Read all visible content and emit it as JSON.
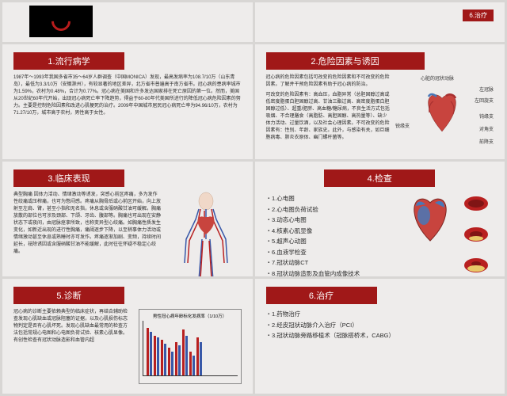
{
  "slides": {
    "s1_1": {
      "title": "1.流行病学",
      "text": "1987年～1993年我国多省市35～64岁人群调查（中国MONICA）发现，最高发病率为108.7/10万（山东青岛），最低为3.3/10万（安徽滁州），有较显著的地区差异，北方省市普遍高于南方省市。冠心病的患病率城市为1.59%，农村为0.48%，合计为0.77%。冠心病在美国和许多发达国家排在死亡原因的第一位。然而，美国从20世纪60年代开始，出现冠心病死亡率下降趋势，得益于60-80年代美国所进行的降低冠心病危险因素的努力。主要是控制危险因素和改进心肌梗死的治疗。2009年中国城市居民冠心病死亡率为94.96/10万，农村为71.27/10万，城市高于农村，男性高于女性。"
    },
    "s1_2": {
      "title": "2.危险因素与诱因",
      "text": "冠心病的危险因素包括可改变的危险因素和不可改变的危险因素。了解并干预危险因素有助于冠心病的防治。",
      "text2": "可改变的危险因素有：高血压，血脂异常（总胆固醇过高或低密度脂蛋白胆固醇过高、甘油三酯过高、高密度脂蛋白胆固醇过低）、超重/肥胖、高血糖/糖尿病，不良生活方式包括吸烟、不合理膳食（高脂肪、高胆固醇、高热量等）、缺少体力活动、过量饮酒，以及社会心理因素。不可改变的危险因素有：性别、年龄、家族史。此外，与感染有关，如巨细胞病毒、肺炎衣原体、幽门螺杆菌等。",
      "labels": {
        "top": "心脏的冠状动脉",
        "l1": "左冠脉",
        "l2": "左回旋支",
        "l3": "钝缘支",
        "l4": "对角支",
        "l5": "前降支",
        "r1": "锐缘支"
      }
    },
    "s2_1": {
      "title": "3.临床表现",
      "text": "典型胸痛 因体力活动、情绪激动等诱发，突感心前区疼痛，多为发作性绞痛或压榨痛，也可为憋闷感。疼痛从胸骨后或心前区开始，向上放射至左肩、臂，甚至小指和无名指，休息或含服硝酸甘油可缓解。胸痛放散的部位也可涉及颈部、下颌、牙齿、腹部等。胸痛也可出现在安静状态下或夜间，由冠脉痉挛所致，也称变异型心绞痛。如胸痛性质发生变化，如新近出现的进行性胸痛，痛阈逐步下降，以至稍事体力活动或情绪激动甚至休息或熟睡时亦可发作。疼痛逐渐加剧、变频，持续时间延长，祛除诱因或含服硝酸甘油不能缓解，此时往往怀疑不稳定心绞痛。"
    },
    "s2_2": {
      "title": "4.检查",
      "items": [
        "・1.心电图",
        "・2.心电图负荷试验",
        "・3.动态心电图",
        "・4.核素心肌显像",
        "・5.超声心动图",
        "・6.血液学检查",
        "・7.冠状动脉CT",
        "・8.冠状动脉造影及血管内成像技术"
      ]
    },
    "s3_1": {
      "title": "5.诊断",
      "text": "冠心病的诊断主要依赖典型的临床症状，再结合辅助检查发现心肌缺血或冠脉阻塞的证据，以及心肌损伤标志物判定是否有心肌坏死。发现心肌缺血最常用的检查方法包括常规心电图和心电图负荷试验、核素心肌显像。有创性检查有冠状动脉造影和血管内超",
      "chartTitle": "男性冠心病年龄标化发病率（1/10万）",
      "bars": [
        {
          "red": 60,
          "blue": 55
        },
        {
          "red": 50,
          "blue": 48
        },
        {
          "red": 45,
          "blue": 40
        },
        {
          "red": 35,
          "blue": 30
        },
        {
          "red": 42,
          "blue": 38
        },
        {
          "red": 58,
          "blue": 50
        },
        {
          "red": 30,
          "blue": 25
        },
        {
          "red": 48,
          "blue": 42
        }
      ]
    },
    "s3_2": {
      "title": "6.治疗",
      "items": [
        "・1.药物治疗",
        "・2.经皮冠状动脉介入治疗（PCI）",
        "・3.冠状动脉旁路移植术（冠脉搭桥术，CABG）"
      ]
    },
    "top_right": {
      "title": "6.治疗"
    }
  },
  "colors": {
    "title_bg": "#a01818",
    "title_fg": "#ffffff",
    "slide_bg": "#eeeceb",
    "page_bg": "#d8d6d4",
    "heart_red": "#c8443e",
    "heart_blue": "#4878b8",
    "bar_red": "#b82020",
    "bar_blue": "#3858a8"
  }
}
